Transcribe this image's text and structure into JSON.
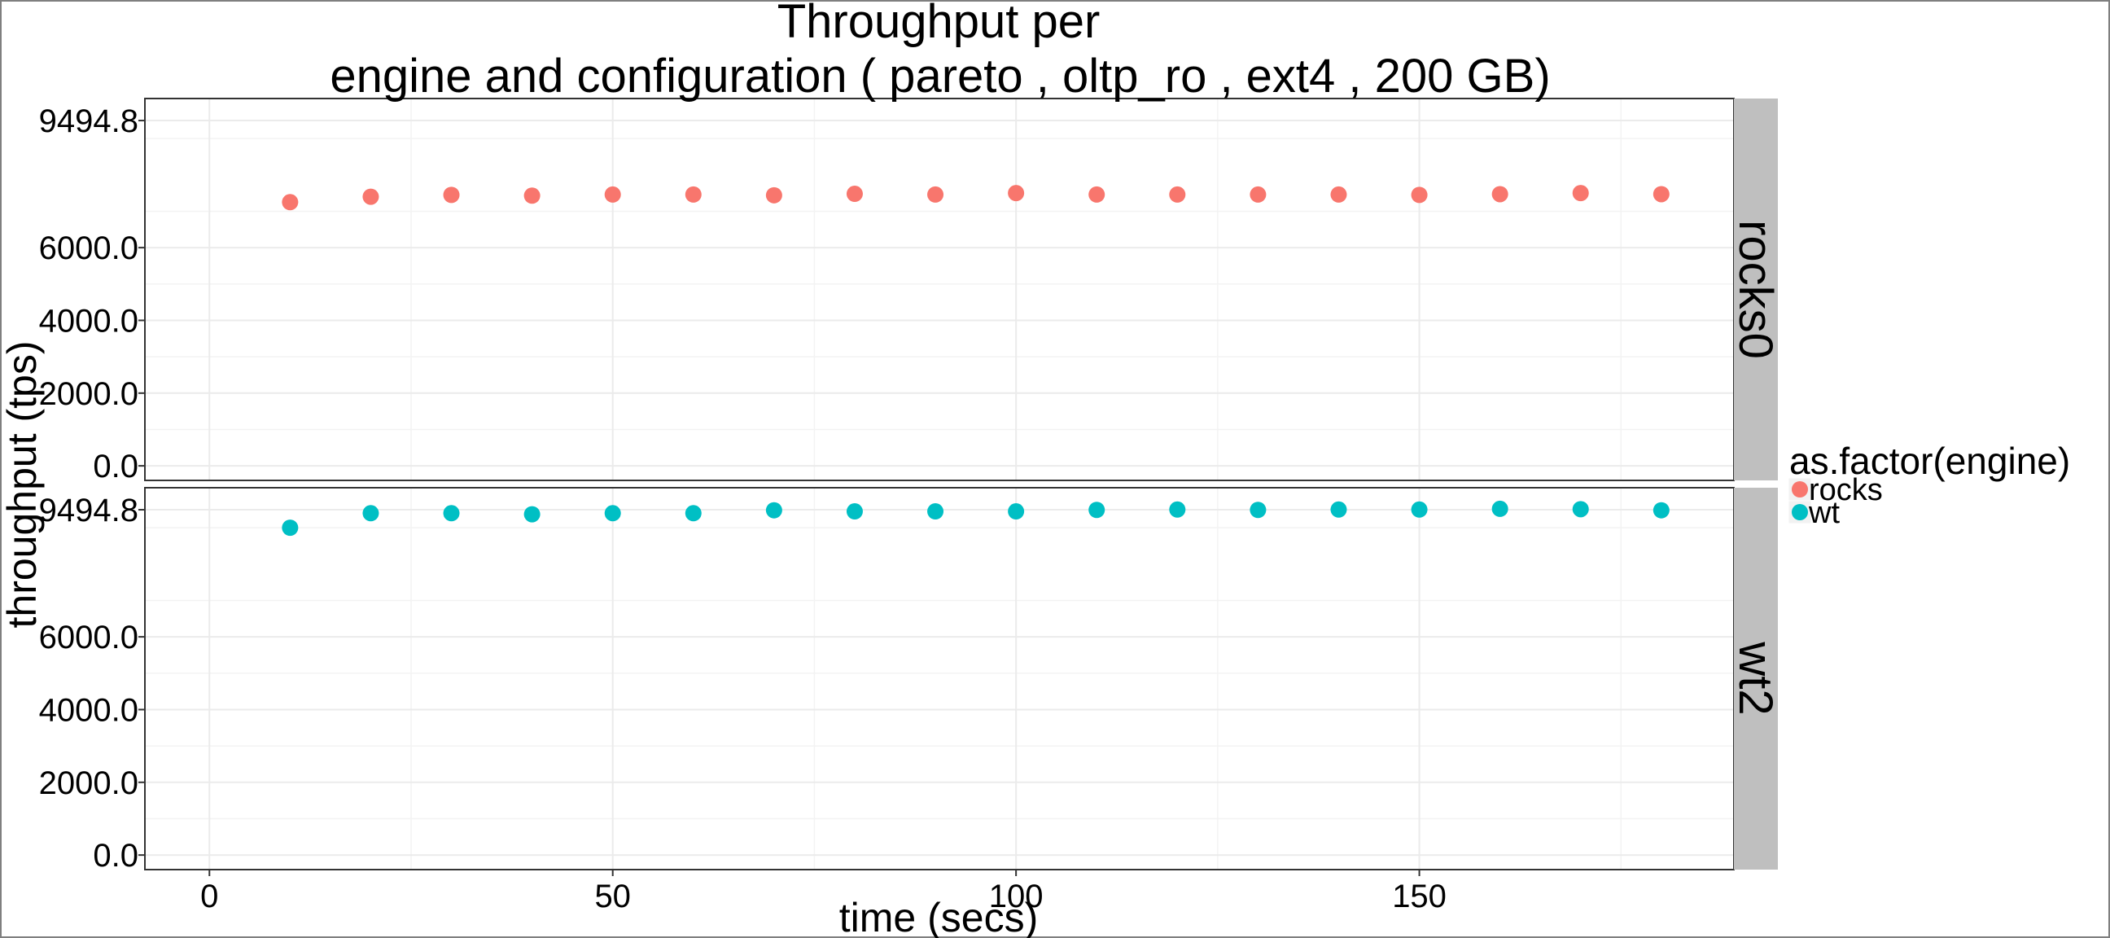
{
  "chart_data": {
    "type": "scatter",
    "title_line1": "Throughput per",
    "title_line2": "engine and configuration ( pareto , oltp_ro , ext4 ,  200 GB)",
    "xlabel": "time (secs)",
    "ylabel": "throughput (tps)",
    "xlim": [
      -8,
      189
    ],
    "ylim": [
      -400,
      10100
    ],
    "x_ticks": [
      0,
      50,
      100,
      150
    ],
    "y_ticks": [
      0,
      2000,
      4000,
      6000,
      9494.8
    ],
    "y_tick_labels": [
      "0.0",
      "2000.0",
      "4000.0",
      "6000.0",
      "9494.8"
    ],
    "grid": true,
    "legend": {
      "title": "as.factor(engine)",
      "position": "right",
      "items": [
        {
          "label": "rocks",
          "color": "#F8766D"
        },
        {
          "label": "wt",
          "color": "#00BFC4"
        }
      ]
    },
    "panels": [
      {
        "strip": "rocks0",
        "series": [
          {
            "name": "rocks",
            "color": "#F8766D",
            "x": [
              10,
              20,
              30,
              40,
              50,
              60,
              70,
              80,
              90,
              100,
              110,
              120,
              130,
              140,
              150,
              160,
              170,
              180
            ],
            "y": [
              7250,
              7400,
              7450,
              7430,
              7460,
              7460,
              7440,
              7480,
              7460,
              7500,
              7460,
              7460,
              7460,
              7460,
              7450,
              7470,
              7500,
              7470
            ]
          }
        ]
      },
      {
        "strip": "wt2",
        "series": [
          {
            "name": "wt",
            "color": "#00BFC4",
            "x": [
              10,
              20,
              30,
              40,
              50,
              60,
              70,
              80,
              90,
              100,
              110,
              120,
              130,
              140,
              150,
              160,
              170,
              180
            ],
            "y": [
              9000,
              9400,
              9400,
              9370,
              9400,
              9400,
              9480,
              9450,
              9450,
              9450,
              9490,
              9500,
              9490,
              9500,
              9500,
              9520,
              9510,
              9480
            ]
          }
        ]
      }
    ]
  }
}
